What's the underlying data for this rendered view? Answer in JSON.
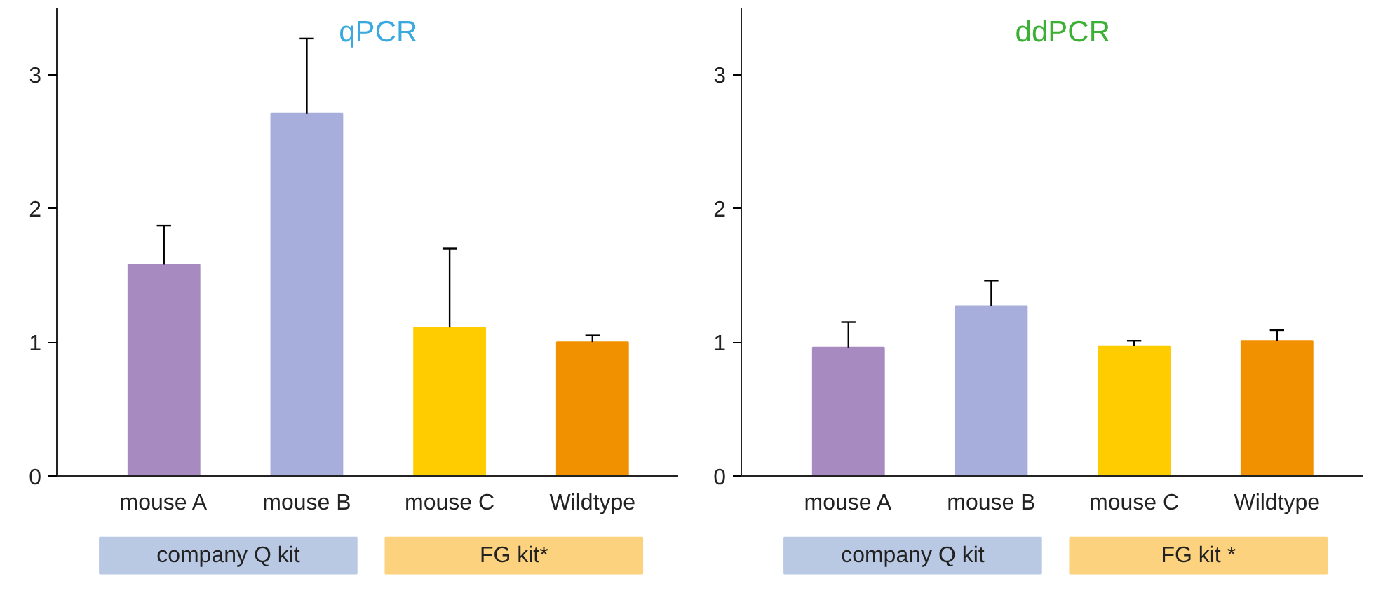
{
  "chart_data": [
    {
      "type": "bar",
      "title": "qPCR",
      "categories": [
        "mouse A",
        "mouse B",
        "mouse C",
        "Wildtype"
      ],
      "values": [
        1.58,
        2.71,
        1.11,
        1.0
      ],
      "colors": [
        "#a78bc0",
        "#a7aedb",
        "#ffcc00",
        "#f29100"
      ],
      "errors": [
        [
          1.58,
          1.87
        ],
        [
          2.71,
          3.27
        ],
        [
          1.11,
          1.7
        ],
        [
          1.0,
          1.05
        ]
      ],
      "ylim": [
        0,
        3.5
      ],
      "yticks": [
        0,
        1,
        2,
        3
      ],
      "grid": false,
      "annotations": [
        "company Q kit",
        "FG kit*"
      ]
    },
    {
      "type": "bar",
      "title": "ddPCR",
      "categories": [
        "mouse A",
        "mouse B",
        "mouse C",
        "Wildtype"
      ],
      "values": [
        0.96,
        1.27,
        0.97,
        1.01
      ],
      "colors": [
        "#a78bc0",
        "#a7aedb",
        "#ffcc00",
        "#f29100"
      ],
      "errors": [
        [
          0.96,
          1.15
        ],
        [
          1.27,
          1.46
        ],
        [
          0.97,
          1.01
        ],
        [
          1.01,
          1.09
        ]
      ],
      "ylim": [
        0,
        3.5
      ],
      "yticks": [
        0,
        1,
        2,
        3
      ],
      "grid": false,
      "annotations": [
        "company Q kit",
        "FG kit *"
      ]
    }
  ]
}
